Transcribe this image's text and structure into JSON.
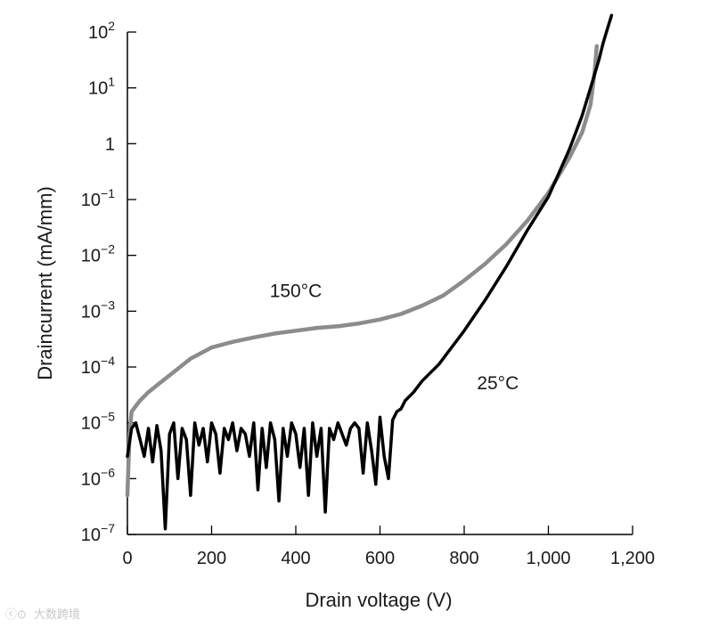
{
  "chart_data": {
    "type": "line",
    "title": "",
    "xlabel": "Drain voltage (V)",
    "ylabel": "Draincurrent (mA/mm)",
    "xlim": [
      0,
      1200
    ],
    "ylim_log10": [
      -7,
      2
    ],
    "x_ticks": [
      {
        "value": 0,
        "label": "0"
      },
      {
        "value": 200,
        "label": "200"
      },
      {
        "value": 400,
        "label": "400"
      },
      {
        "value": 600,
        "label": "600"
      },
      {
        "value": 800,
        "label": "800"
      },
      {
        "value": 1000,
        "label": "1,000"
      },
      {
        "value": 1200,
        "label": "1,200"
      }
    ],
    "y_ticks": [
      {
        "exp": 2,
        "base": "10",
        "sup": "2"
      },
      {
        "exp": 1,
        "base": "10",
        "sup": "1"
      },
      {
        "exp": 0,
        "base": "1",
        "sup": ""
      },
      {
        "exp": -1,
        "base": "10",
        "sup": "−1"
      },
      {
        "exp": -2,
        "base": "10",
        "sup": "−2"
      },
      {
        "exp": -3,
        "base": "10",
        "sup": "−3"
      },
      {
        "exp": -4,
        "base": "10",
        "sup": "−4"
      },
      {
        "exp": -5,
        "base": "10",
        "sup": "−5"
      },
      {
        "exp": -6,
        "base": "10",
        "sup": "−6"
      },
      {
        "exp": -7,
        "base": "10",
        "sup": "−7"
      }
    ],
    "series": [
      {
        "name": "150°C",
        "color": "#8c8c8c",
        "x": [
          0,
          5,
          10,
          20,
          30,
          50,
          75,
          100,
          150,
          200,
          250,
          300,
          350,
          400,
          450,
          500,
          550,
          600,
          650,
          700,
          750,
          800,
          850,
          900,
          950,
          1000,
          1050,
          1080,
          1100,
          1110,
          1115
        ],
        "log10_y": [
          -6.3,
          -5.2,
          -4.8,
          -4.7,
          -4.6,
          -4.45,
          -4.3,
          -4.15,
          -3.85,
          -3.65,
          -3.55,
          -3.47,
          -3.4,
          -3.35,
          -3.3,
          -3.27,
          -3.22,
          -3.15,
          -3.05,
          -2.9,
          -2.72,
          -2.45,
          -2.15,
          -1.8,
          -1.38,
          -0.88,
          -0.25,
          0.2,
          0.7,
          1.3,
          1.75
        ]
      },
      {
        "name": "25°C",
        "color": "#000000",
        "x": [
          0,
          10,
          20,
          30,
          40,
          50,
          60,
          70,
          80,
          90,
          100,
          110,
          120,
          130,
          140,
          150,
          160,
          170,
          180,
          190,
          200,
          210,
          220,
          230,
          240,
          250,
          260,
          270,
          280,
          290,
          300,
          310,
          320,
          330,
          340,
          350,
          360,
          370,
          380,
          390,
          400,
          410,
          420,
          430,
          440,
          450,
          460,
          470,
          480,
          490,
          500,
          510,
          520,
          530,
          540,
          550,
          560,
          570,
          580,
          590,
          600,
          610,
          620,
          630,
          640,
          650,
          660,
          680,
          700,
          720,
          740,
          760,
          780,
          800,
          850,
          900,
          950,
          1000,
          1050,
          1080,
          1100,
          1120,
          1130,
          1140,
          1150
        ],
        "log10_y": [
          -5.6,
          -5.1,
          -5.0,
          -5.3,
          -5.6,
          -5.1,
          -5.7,
          -5.05,
          -5.5,
          -6.9,
          -5.2,
          -5.0,
          -6.0,
          -5.1,
          -5.3,
          -6.3,
          -5.0,
          -5.4,
          -5.1,
          -5.7,
          -5.0,
          -5.2,
          -5.9,
          -5.1,
          -5.3,
          -5.0,
          -5.5,
          -5.1,
          -5.2,
          -5.6,
          -5.0,
          -6.2,
          -5.1,
          -5.8,
          -5.0,
          -5.3,
          -6.4,
          -5.1,
          -5.6,
          -5.0,
          -5.2,
          -5.8,
          -5.1,
          -6.3,
          -5.0,
          -5.6,
          -5.1,
          -6.6,
          -5.1,
          -5.3,
          -5.0,
          -5.2,
          -5.4,
          -5.1,
          -5.0,
          -5.1,
          -5.9,
          -5.0,
          -5.5,
          -6.1,
          -4.9,
          -5.6,
          -6.0,
          -4.95,
          -4.8,
          -4.75,
          -4.6,
          -4.45,
          -4.25,
          -4.1,
          -3.95,
          -3.75,
          -3.55,
          -3.35,
          -2.8,
          -2.2,
          -1.55,
          -0.95,
          -0.1,
          0.5,
          1.0,
          1.5,
          1.8,
          2.05,
          2.3
        ]
      }
    ],
    "annotations": [
      {
        "text": "150°C",
        "x": 400,
        "log10_y": -2.75
      },
      {
        "text": "25°C",
        "x": 880,
        "log10_y": -4.4
      }
    ],
    "grid": false,
    "legend": "none"
  },
  "watermark": {
    "text": "大数跨境"
  }
}
